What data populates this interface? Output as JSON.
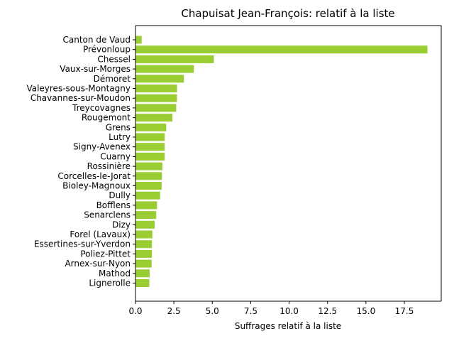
{
  "chart_data": {
    "type": "bar",
    "orientation": "horizontal",
    "title": "Chapuisat Jean-François: relatif à la liste",
    "xlabel": "Suffrages relatif à la liste",
    "ylabel": "",
    "xlim": [
      0,
      19.9
    ],
    "xticks": [
      0.0,
      2.5,
      5.0,
      7.5,
      10.0,
      12.5,
      15.0,
      17.5
    ],
    "xtick_labels": [
      "0.0",
      "2.5",
      "5.0",
      "7.5",
      "10.0",
      "12.5",
      "15.0",
      "17.5"
    ],
    "bar_color": "#9acd32",
    "grid": false,
    "categories": [
      "Canton de Vaud",
      "Prévonloup",
      "Chessel",
      "Vaux-sur-Morges",
      "Démoret",
      "Valeyres-sous-Montagny",
      "Chavannes-sur-Moudon",
      "Treycovagnes",
      "Rougemont",
      "Grens",
      "Lutry",
      "Signy-Avenex",
      "Cuarny",
      "Rossinière",
      "Corcelles-le-Jorat",
      "Bioley-Magnoux",
      "Dully",
      "Bofflens",
      "Senarclens",
      "Dizy",
      "Forel (Lavaux)",
      "Essertines-sur-Yverdon",
      "Poliez-Pittet",
      "Arnex-sur-Nyon",
      "Mathod",
      "Lignerolle"
    ],
    "values": [
      0.4,
      19.0,
      5.1,
      3.8,
      3.15,
      2.7,
      2.7,
      2.65,
      2.4,
      2.0,
      1.9,
      1.9,
      1.9,
      1.75,
      1.72,
      1.7,
      1.6,
      1.4,
      1.35,
      1.25,
      1.1,
      1.07,
      1.07,
      1.05,
      0.92,
      0.9
    ]
  }
}
